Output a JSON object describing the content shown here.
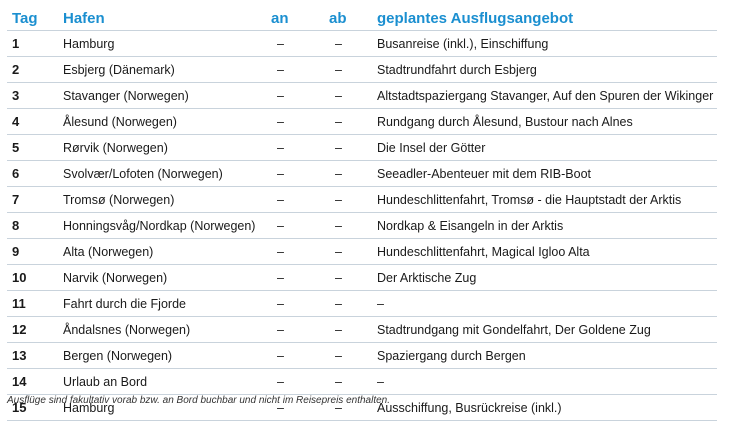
{
  "header": {
    "tag": "Tag",
    "hafen": "Hafen",
    "an": "an",
    "ab": "ab",
    "angebot": "geplantes Ausflugsangebot"
  },
  "rows": [
    {
      "tag": "1",
      "hafen": "Hamburg",
      "an": "–",
      "ab": "–",
      "angebot": "Busanreise (inkl.), Einschiffung"
    },
    {
      "tag": "2",
      "hafen": "Esbjerg (Dänemark)",
      "an": "–",
      "ab": "–",
      "angebot": "Stadtrundfahrt durch Esbjerg"
    },
    {
      "tag": "3",
      "hafen": "Stavanger (Norwegen)",
      "an": "–",
      "ab": "–",
      "angebot": "Altstadtspaziergang Stavanger, Auf den Spuren der Wikinger"
    },
    {
      "tag": "4",
      "hafen": "Ålesund (Norwegen)",
      "an": "–",
      "ab": "–",
      "angebot": "Rundgang durch Ålesund, Bustour nach Alnes"
    },
    {
      "tag": "5",
      "hafen": "Rørvik (Norwegen)",
      "an": "–",
      "ab": "–",
      "angebot": "Die Insel der Götter"
    },
    {
      "tag": "6",
      "hafen": "Svolvær/Lofoten (Norwegen)",
      "an": "–",
      "ab": "–",
      "angebot": "Seeadler-Abenteuer mit dem RIB-Boot"
    },
    {
      "tag": "7",
      "hafen": "Tromsø (Norwegen)",
      "an": "–",
      "ab": "–",
      "angebot": "Hundeschlittenfahrt, Tromsø - die Hauptstadt der Arktis"
    },
    {
      "tag": "8",
      "hafen": "Honningsvåg/Nordkap (Norwegen)",
      "an": "–",
      "ab": "–",
      "angebot": "Nordkap & Eisangeln in der Arktis"
    },
    {
      "tag": "9",
      "hafen": "Alta (Norwegen)",
      "an": "–",
      "ab": "–",
      "angebot": "Hundeschlittenfahrt, Magical Igloo Alta"
    },
    {
      "tag": "10",
      "hafen": "Narvik (Norwegen)",
      "an": "–",
      "ab": "–",
      "angebot": "Der Arktische Zug"
    },
    {
      "tag": "11",
      "hafen": "Fahrt durch die Fjorde",
      "an": "–",
      "ab": "–",
      "angebot": "–"
    },
    {
      "tag": "12",
      "hafen": "Åndalsnes (Norwegen)",
      "an": "–",
      "ab": "–",
      "angebot": "Stadtrundgang mit Gondelfahrt, Der Goldene Zug"
    },
    {
      "tag": "13",
      "hafen": "Bergen (Norwegen)",
      "an": "–",
      "ab": "–",
      "angebot": "Spaziergang durch Bergen"
    },
    {
      "tag": "14",
      "hafen": "Urlaub an Bord",
      "an": "–",
      "ab": "–",
      "angebot": "–"
    },
    {
      "tag": "15",
      "hafen": "Hamburg",
      "an": "–",
      "ab": "–",
      "angebot": "Ausschiffung, Busrückreise (inkl.)"
    }
  ],
  "footnote": "Ausflüge sind fakultativ vorab bzw. an Bord buchbar und nicht im Reisepreis enthalten.",
  "colors": {
    "header_blue": "#1b8fd0",
    "rule": "#c9d3dc",
    "text": "#1a1a1a"
  }
}
